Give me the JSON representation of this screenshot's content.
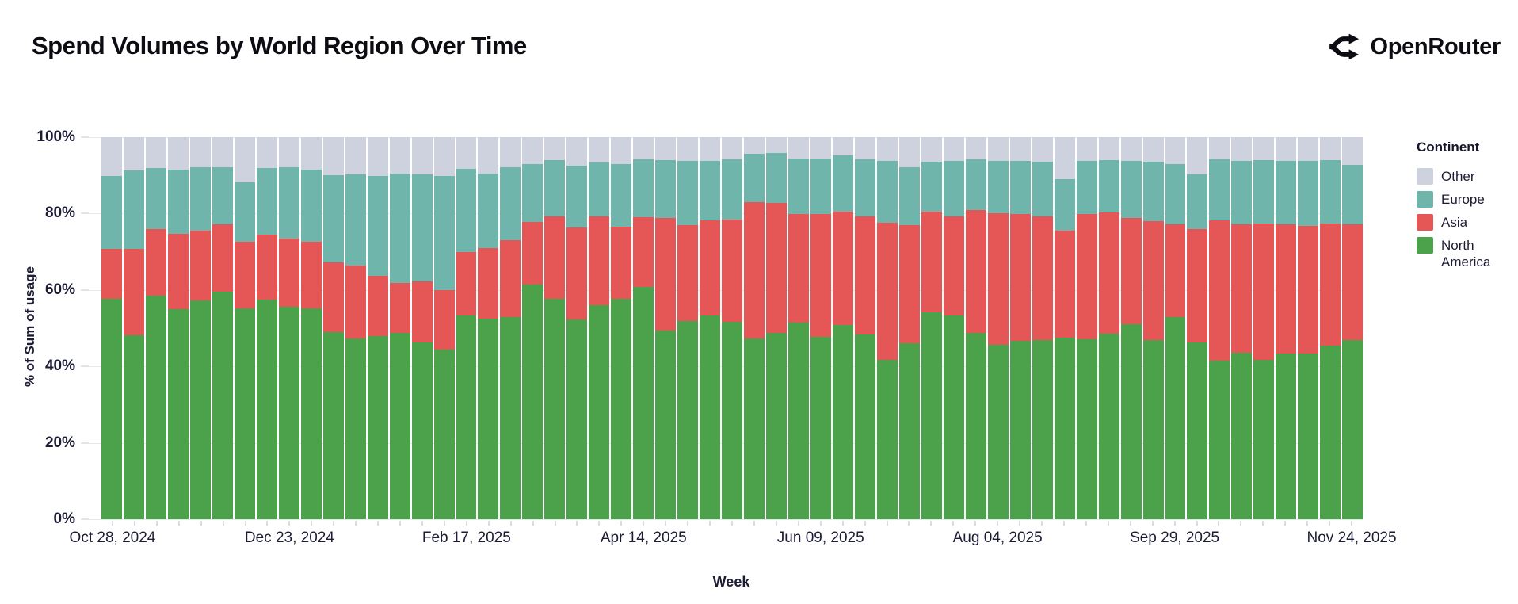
{
  "header": {
    "title": "Spend Volumes by World Region Over Time",
    "brand": "OpenRouter"
  },
  "legend": {
    "title": "Continent",
    "items": [
      {
        "label": "Other",
        "color": "#ced2de"
      },
      {
        "label": "Europe",
        "color": "#6fb5ab"
      },
      {
        "label": "Asia",
        "color": "#e45756"
      },
      {
        "label": "North America",
        "color": "#4ba24b"
      }
    ]
  },
  "axes": {
    "y_title": "% of Sum of usage",
    "x_title": "Week",
    "y_ticks": [
      {
        "label": "100%",
        "value": 100
      },
      {
        "label": "80%",
        "value": 80
      },
      {
        "label": "60%",
        "value": 60
      },
      {
        "label": "40%",
        "value": 40
      },
      {
        "label": "20%",
        "value": 20
      },
      {
        "label": "0%",
        "value": 0
      }
    ],
    "x_ticks": [
      {
        "label": "Oct 28, 2024",
        "bar_index": 0
      },
      {
        "label": "Dec 23, 2024",
        "bar_index": 8
      },
      {
        "label": "Feb 17, 2025",
        "bar_index": 16
      },
      {
        "label": "Apr 14, 2025",
        "bar_index": 24
      },
      {
        "label": "Jun 09, 2025",
        "bar_index": 32
      },
      {
        "label": "Aug 04, 2025",
        "bar_index": 40
      },
      {
        "label": "Sep 29, 2025",
        "bar_index": 48
      },
      {
        "label": "Nov 24, 2025",
        "bar_index": 56
      }
    ]
  },
  "chart_data": {
    "type": "bar",
    "stacked": true,
    "normalized": "percent",
    "title": "Spend Volumes by World Region Over Time",
    "xlabel": "Week",
    "ylabel": "% of Sum of usage",
    "ylim": [
      0,
      100
    ],
    "grid": true,
    "legend_position": "right",
    "n_points": 57,
    "x_start": "Oct 28, 2024",
    "x_step_days": 7,
    "x_tick_every": 8,
    "x_tick_labels": [
      "Oct 28, 2024",
      "Dec 23, 2024",
      "Feb 17, 2025",
      "Apr 14, 2025",
      "Jun 09, 2025",
      "Aug 04, 2025",
      "Sep 29, 2025",
      "Nov 24, 2025"
    ],
    "stack_order_bottom_to_top": [
      "North America",
      "Asia",
      "Europe",
      "Other"
    ],
    "series": [
      {
        "name": "North America",
        "color": "#4ba24b",
        "values": [
          57.6,
          48.2,
          58.5,
          54.9,
          57.3,
          59.6,
          55.2,
          57.5,
          55.6,
          55.2,
          49.0,
          47.3,
          48.0,
          48.8,
          46.2,
          44.5,
          53.4,
          52.5,
          53.0,
          61.5,
          57.6,
          52.2,
          56.0,
          57.6,
          60.8,
          49.3,
          51.8,
          53.4,
          51.6,
          47.3,
          48.8,
          51.4,
          47.7,
          50.9,
          48.4,
          41.7,
          46.0,
          54.2,
          53.4,
          48.7,
          45.7,
          46.7,
          46.9,
          47.6,
          47.1,
          48.5,
          51.1,
          46.9,
          52.9,
          46.2,
          41.4,
          43.5,
          41.8,
          43.3,
          43.3,
          45.4,
          46.8
        ]
      },
      {
        "name": "Asia",
        "color": "#e45756",
        "values": [
          13.2,
          22.5,
          17.5,
          19.8,
          18.2,
          17.6,
          17.4,
          16.9,
          17.8,
          17.5,
          18.3,
          19.0,
          15.7,
          13.0,
          16.1,
          15.4,
          16.6,
          18.4,
          20.1,
          16.4,
          21.7,
          24.2,
          23.2,
          18.9,
          18.3,
          29.5,
          25.2,
          24.9,
          26.8,
          35.6,
          34.0,
          28.5,
          32.2,
          29.7,
          30.8,
          36.0,
          30.9,
          26.4,
          25.8,
          32.3,
          34.4,
          33.1,
          32.3,
          27.9,
          32.8,
          31.8,
          27.7,
          31.2,
          24.3,
          29.8,
          36.9,
          33.7,
          35.6,
          33.8,
          33.4,
          32.0,
          30.4
        ]
      },
      {
        "name": "Europe",
        "color": "#6fb5ab",
        "values": [
          19.0,
          20.5,
          15.9,
          16.9,
          16.6,
          14.9,
          15.6,
          17.5,
          18.8,
          18.7,
          22.7,
          24.0,
          26.1,
          28.7,
          27.9,
          29.9,
          21.7,
          19.6,
          19.1,
          15.1,
          14.6,
          16.1,
          14.1,
          16.4,
          15.1,
          15.2,
          16.8,
          15.5,
          15.8,
          12.8,
          13.0,
          14.6,
          14.4,
          14.6,
          15.0,
          16.1,
          15.3,
          13.0,
          14.6,
          13.3,
          13.7,
          14.0,
          14.4,
          13.6,
          13.9,
          13.7,
          15.0,
          15.5,
          15.7,
          14.3,
          15.8,
          16.6,
          16.6,
          16.7,
          17.1,
          16.6,
          15.6
        ]
      },
      {
        "name": "Other",
        "color": "#ced2de",
        "values": [
          10.2,
          8.8,
          8.1,
          8.4,
          7.9,
          7.9,
          11.8,
          8.1,
          7.8,
          8.6,
          10.0,
          9.7,
          10.2,
          9.5,
          9.8,
          10.2,
          8.3,
          9.5,
          7.8,
          7.0,
          6.1,
          7.5,
          6.7,
          7.1,
          5.8,
          6.0,
          6.2,
          6.2,
          5.8,
          4.3,
          4.2,
          5.5,
          5.7,
          4.8,
          5.8,
          6.2,
          7.8,
          6.4,
          6.2,
          5.7,
          6.2,
          6.2,
          6.4,
          10.9,
          6.2,
          6.0,
          6.2,
          6.4,
          7.1,
          9.7,
          5.9,
          6.2,
          6.0,
          6.2,
          6.2,
          6.0,
          7.2
        ]
      }
    ]
  }
}
